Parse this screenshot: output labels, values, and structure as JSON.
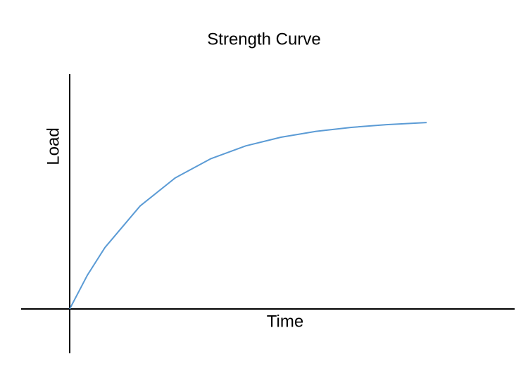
{
  "title": "Strength Curve",
  "x_label": "Time",
  "y_label": "Load"
}
